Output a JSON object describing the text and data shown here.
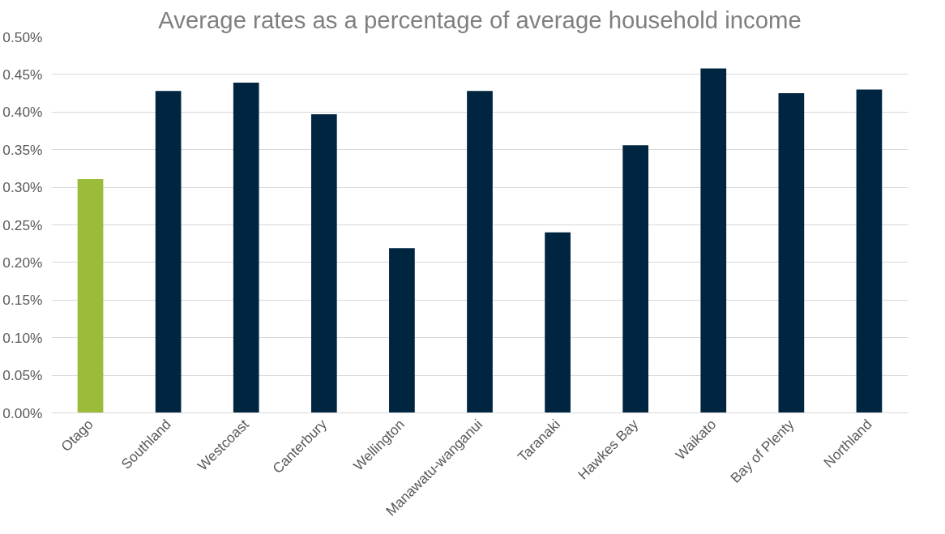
{
  "chart_data": {
    "type": "bar",
    "title": "Average rates as a percentage of average household income",
    "categories": [
      "Otago",
      "Southland",
      "Westcoast",
      "Canterbury",
      "Wellington",
      "Manawatu-wanganui",
      "Taranaki",
      "Hawkes Bay",
      "Waikato",
      "Bay of Plenty",
      "Northland"
    ],
    "values": [
      0.311,
      0.428,
      0.439,
      0.397,
      0.219,
      0.428,
      0.24,
      0.356,
      0.458,
      0.425,
      0.43
    ],
    "colors": [
      "#9bbb3a",
      "#002540",
      "#002540",
      "#002540",
      "#002540",
      "#002540",
      "#002540",
      "#002540",
      "#002540",
      "#002540",
      "#002540"
    ],
    "ylim": [
      0,
      0.5
    ],
    "yticks": [
      {
        "value": 0,
        "label": "0.00%"
      },
      {
        "value": 0.05,
        "label": "0.05%"
      },
      {
        "value": 0.1,
        "label": "0.10%"
      },
      {
        "value": 0.15,
        "label": "0.15%"
      },
      {
        "value": 0.2,
        "label": "0.20%"
      },
      {
        "value": 0.25,
        "label": "0.25%"
      },
      {
        "value": 0.3,
        "label": "0.30%"
      },
      {
        "value": 0.35,
        "label": "0.35%"
      },
      {
        "value": 0.4,
        "label": "0.40%"
      },
      {
        "value": 0.45,
        "label": "0.45%"
      },
      {
        "value": 0.5,
        "label": "0.50%"
      }
    ],
    "grid": "y"
  }
}
